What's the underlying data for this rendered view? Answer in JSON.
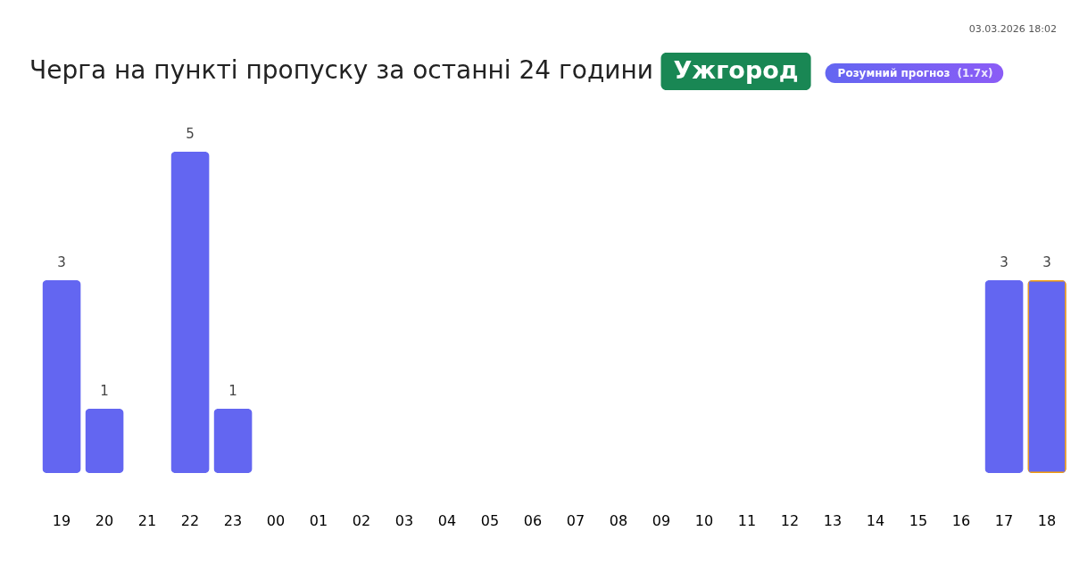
{
  "chart_data": {
    "type": "bar",
    "title": "Черга на пункті пропуску за останні 24 години",
    "subtitle": "Ужгород",
    "categories": [
      "19",
      "20",
      "21",
      "22",
      "23",
      "00",
      "01",
      "02",
      "03",
      "04",
      "05",
      "06",
      "07",
      "08",
      "09",
      "10",
      "11",
      "12",
      "13",
      "14",
      "15",
      "16",
      "17",
      "18"
    ],
    "values": [
      3,
      1,
      null,
      5,
      1,
      null,
      null,
      null,
      null,
      null,
      null,
      null,
      null,
      null,
      null,
      null,
      null,
      null,
      null,
      null,
      null,
      null,
      3,
      3
    ],
    "color": "#6366f1",
    "data_labels": true,
    "annotations": [
      "Розумний прогноз",
      "(1.7x)",
      "03.03.2026 18:02"
    ]
  }
}
